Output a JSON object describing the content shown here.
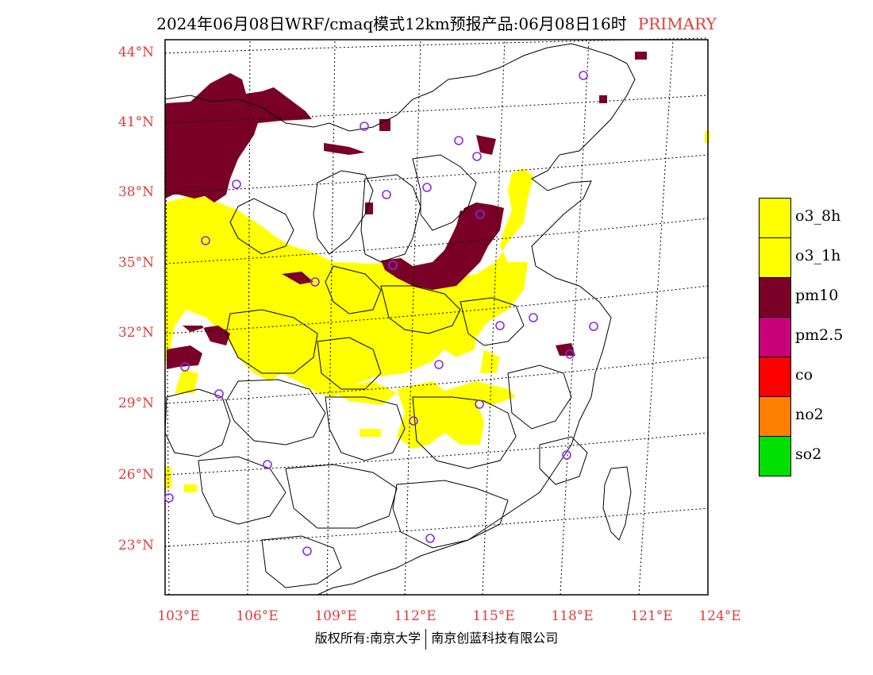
{
  "header": {
    "title": "2024年06月08日WRF/cmaq模式12km预报产品:06月08日16时",
    "mode": "PRIMARY"
  },
  "map": {
    "lat_labels": [
      "44°N",
      "41°N",
      "38°N",
      "35°N",
      "32°N",
      "29°N",
      "26°N",
      "23°N"
    ],
    "lon_labels": [
      "103°E",
      "106°E",
      "109°E",
      "112°E",
      "115°E",
      "118°E",
      "121°E",
      "124°E"
    ],
    "colors": {
      "o3_8h": "#ffff00",
      "pm10": "#7b0028",
      "station": "#8a2be2",
      "axis_text": "#e03c3c"
    }
  },
  "legend": [
    {
      "label": "o3_8h",
      "color": "#ffff00"
    },
    {
      "label": "o3_1h",
      "color": "#ffff00"
    },
    {
      "label": "pm10",
      "color": "#7b0028"
    },
    {
      "label": "pm2.5",
      "color": "#c8007a"
    },
    {
      "label": "co",
      "color": "#ff0000"
    },
    {
      "label": "no2",
      "color": "#ff7f00"
    },
    {
      "label": "so2",
      "color": "#00e000"
    }
  ],
  "footer": {
    "left": "版权所有:南京大学",
    "right": "南京创蓝科技有限公司"
  }
}
